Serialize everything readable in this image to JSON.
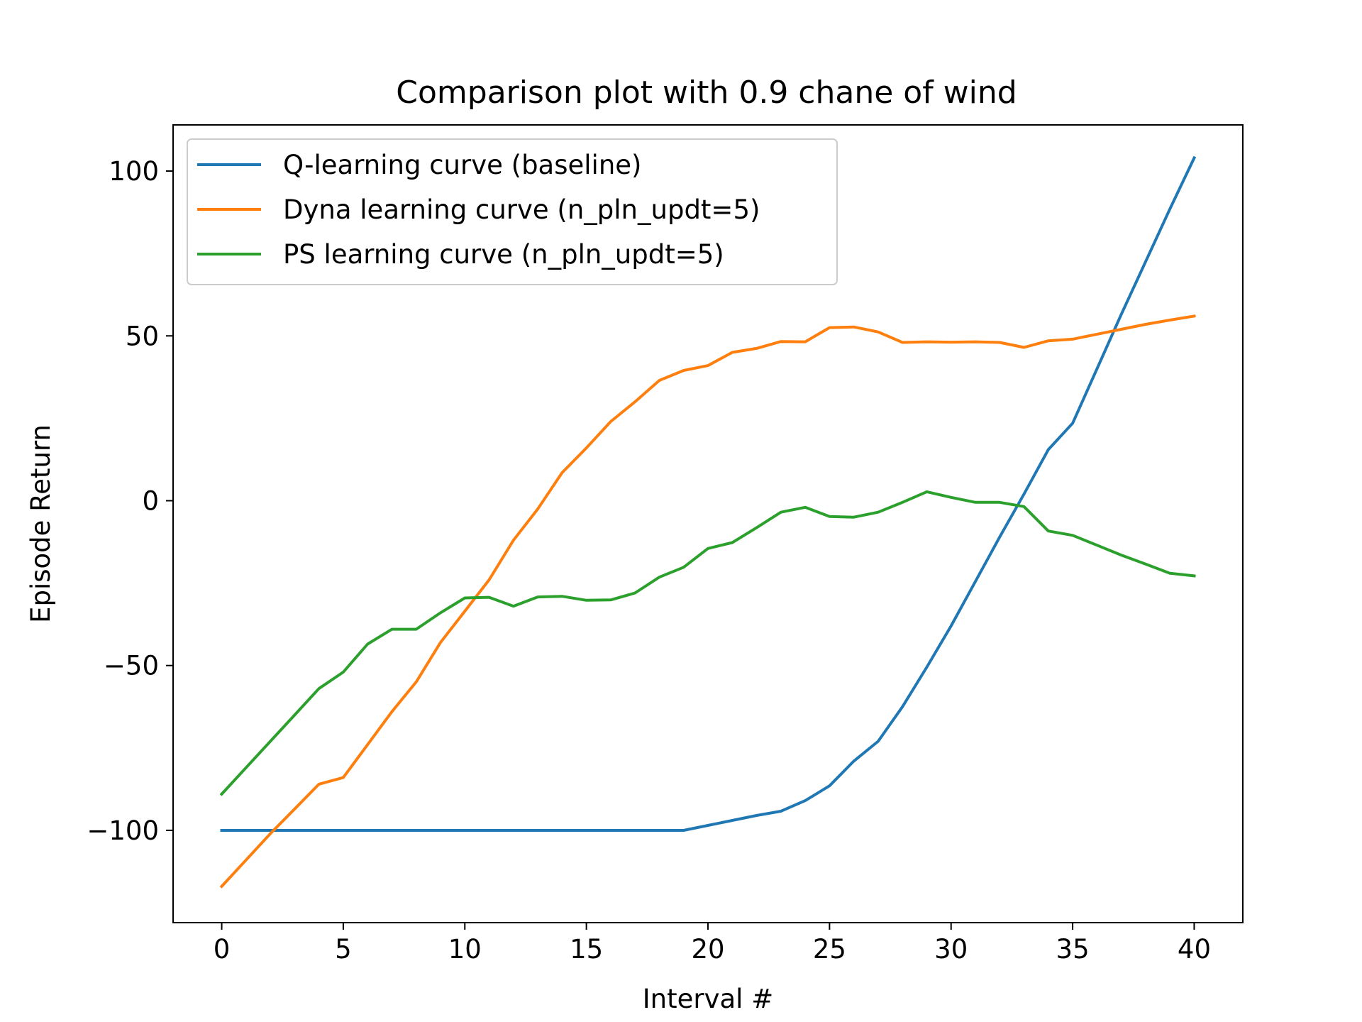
{
  "chart_data": {
    "type": "line",
    "title": "Comparison plot with 0.9 chane of wind",
    "xlabel": "Interval #",
    "ylabel": "Episode Return",
    "xlim": [
      -2,
      42
    ],
    "ylim": [
      -128,
      114
    ],
    "xticks": [
      0,
      5,
      10,
      15,
      20,
      25,
      30,
      35,
      40
    ],
    "yticks": [
      -100,
      -50,
      0,
      50,
      100
    ],
    "ytick_labels": [
      "−100",
      "−50",
      "0",
      "50",
      "100"
    ],
    "grid": false,
    "legend_position": "top-left",
    "x": [
      0,
      1,
      2,
      3,
      4,
      5,
      6,
      7,
      8,
      9,
      10,
      11,
      12,
      13,
      14,
      15,
      16,
      17,
      18,
      19,
      20,
      21,
      22,
      23,
      24,
      25,
      26,
      27,
      28,
      29,
      30,
      31,
      32,
      33,
      34,
      35,
      36,
      37,
      38,
      39,
      40
    ],
    "series": [
      {
        "name": "Q-learning curve (baseline)",
        "color": "#1f77b4",
        "values": [
          -100,
          -100,
          -100,
          -100,
          -100,
          -100,
          -100,
          -100,
          -100,
          -100,
          -100,
          -100,
          -100,
          -100,
          -100,
          -100,
          -100,
          -100,
          -100,
          -100,
          -98.5,
          -97,
          -95.5,
          -94.2,
          -91,
          -86.5,
          -79,
          -73,
          -62.5,
          -50.5,
          -38,
          -24.5,
          -11,
          2,
          15.5,
          23.5,
          40,
          56.5,
          72.5,
          88.5,
          104
        ]
      },
      {
        "name": "Dyna learning curve (n_pln_updt=5)",
        "color": "#ff7f0e",
        "values": [
          -117,
          -109,
          -101,
          -93.5,
          -86,
          -84,
          -74,
          -64,
          -55,
          -43,
          -33.5,
          -24,
          -12,
          -2.5,
          8.5,
          16,
          24,
          30,
          36.5,
          39.5,
          41,
          45,
          46.2,
          48.3,
          48.2,
          52.5,
          52.7,
          51.2,
          48,
          48.2,
          48.1,
          48.2,
          48,
          46.5,
          48.5,
          49,
          50.5,
          52,
          53.5,
          54.8,
          56
        ]
      },
      {
        "name": "PS learning curve (n_pln_updt=5)",
        "color": "#2ca02c",
        "values": [
          -89,
          -81,
          -73,
          -65,
          -57,
          -52,
          -43.5,
          -39,
          -39,
          -34,
          -29.5,
          -29.3,
          -32,
          -29.2,
          -29,
          -30.2,
          -30.1,
          -28,
          -23.2,
          -20.2,
          -14.5,
          -12.7,
          -8.2,
          -3.5,
          -2,
          -4.8,
          -5,
          -3.5,
          -0.5,
          2.7,
          1,
          -0.5,
          -0.5,
          -1.8,
          -9.2,
          -10.5,
          -13.5,
          -16.5,
          -19.2,
          -22,
          -22.8
        ]
      }
    ]
  }
}
